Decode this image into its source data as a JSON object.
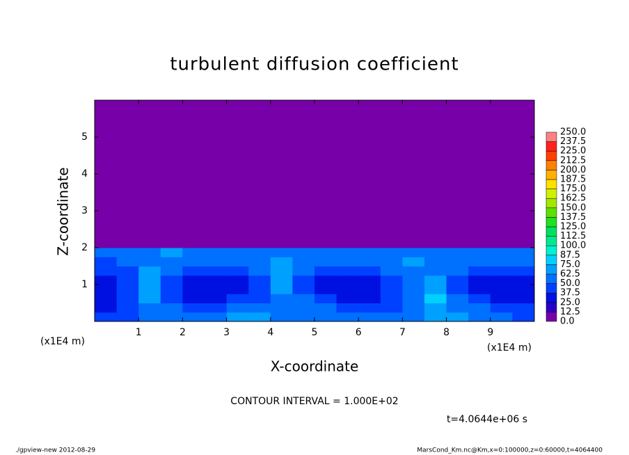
{
  "chart_data": {
    "type": "heatmap",
    "title": "turbulent diffusion coefficient",
    "x_label": "X-coordinate",
    "y_label": "Z-coordinate",
    "x_unit": "(x1E4 m)",
    "y_unit": "(x1E4 m)",
    "annotation": "CONTOUR INTERVAL = 1.000E+02",
    "time_label": "t=4.0644e+06 s",
    "footer_left": "./gpview-new  2012-08-29",
    "footer_right": "MarsCond_Km.nc@Km,x=0:100000,z=0:60000,t=4064400",
    "xlim": [
      0,
      10
    ],
    "ylim": [
      0,
      6
    ],
    "xticks": [
      1,
      2,
      3,
      4,
      5,
      6,
      7,
      8,
      9
    ],
    "yticks": [
      1,
      2,
      3,
      4,
      5
    ],
    "xbins": [
      0,
      0.5,
      1,
      1.5,
      2,
      2.5,
      3,
      3.5,
      4,
      4.5,
      5,
      5.5,
      6,
      6.5,
      7,
      7.5,
      8,
      8.5,
      9,
      9.5,
      10
    ],
    "ybins": [
      0,
      0.25,
      0.5,
      0.75,
      1,
      1.25,
      1.5,
      1.75,
      2,
      6
    ],
    "z": [
      [
        40,
        45,
        55,
        60,
        60,
        55,
        65,
        70,
        55,
        50,
        55,
        60,
        60,
        55,
        60,
        70,
        65,
        55,
        50,
        45
      ],
      [
        35,
        45,
        60,
        50,
        40,
        45,
        55,
        60,
        50,
        55,
        50,
        45,
        40,
        45,
        50,
        72,
        60,
        50,
        45,
        40
      ],
      [
        30,
        40,
        70,
        40,
        30,
        35,
        40,
        45,
        60,
        50,
        40,
        30,
        35,
        40,
        55,
        75,
        55,
        40,
        35,
        35
      ],
      [
        30,
        40,
        72,
        40,
        25,
        30,
        35,
        40,
        65,
        45,
        35,
        25,
        30,
        40,
        50,
        70,
        45,
        30,
        25,
        30
      ],
      [
        35,
        40,
        70,
        45,
        30,
        30,
        35,
        45,
        68,
        45,
        35,
        30,
        35,
        45,
        55,
        65,
        45,
        30,
        30,
        35
      ],
      [
        40,
        45,
        65,
        50,
        40,
        40,
        45,
        50,
        65,
        50,
        45,
        40,
        45,
        55,
        60,
        60,
        50,
        40,
        40,
        40
      ],
      [
        45,
        55,
        60,
        60,
        55,
        50,
        55,
        60,
        65,
        55,
        50,
        50,
        55,
        60,
        65,
        55,
        55,
        50,
        50,
        50
      ],
      [
        50,
        55,
        60,
        65,
        60,
        60,
        55,
        60,
        60,
        60,
        55,
        55,
        60,
        60,
        60,
        55,
        60,
        55,
        55,
        55
      ],
      [
        0,
        0,
        0,
        0,
        0,
        0,
        0,
        0,
        0,
        0,
        0,
        0,
        0,
        0,
        0,
        0,
        0,
        0,
        0,
        0
      ]
    ],
    "colorbar_ticks": [
      {
        "value": 0,
        "label": "0.0"
      },
      {
        "value": 12.5,
        "label": "12.5"
      },
      {
        "value": 25,
        "label": "25.0"
      },
      {
        "value": 37.5,
        "label": "37.5"
      },
      {
        "value": 50,
        "label": "50.0"
      },
      {
        "value": 62.5,
        "label": "62.5"
      },
      {
        "value": 75,
        "label": "75.0"
      },
      {
        "value": 87.5,
        "label": "87.5"
      },
      {
        "value": 100,
        "label": "100.0"
      },
      {
        "value": 112.5,
        "label": "112.5"
      },
      {
        "value": 125,
        "label": "125.0"
      },
      {
        "value": 137.5,
        "label": "137.5"
      },
      {
        "value": 150,
        "label": "150.0"
      },
      {
        "value": 162.5,
        "label": "162.5"
      },
      {
        "value": 175,
        "label": "175.0"
      },
      {
        "value": 187.5,
        "label": "187.5"
      },
      {
        "value": 200,
        "label": "200.0"
      },
      {
        "value": 212.5,
        "label": "212.5"
      },
      {
        "value": 225,
        "label": "225.0"
      },
      {
        "value": 237.5,
        "label": "237.5"
      },
      {
        "value": 250,
        "label": "250.0"
      }
    ],
    "colors": [
      "#7800a8",
      "#2800c8",
      "#0010e0",
      "#0040ff",
      "#0070ff",
      "#00a0ff",
      "#00d0ff",
      "#00f0d0",
      "#00e890",
      "#00e060",
      "#20e020",
      "#60e000",
      "#a0e800",
      "#d0f000",
      "#ffe000",
      "#ffb000",
      "#ff8000",
      "#ff4000",
      "#ff2020",
      "#ff8080"
    ]
  }
}
